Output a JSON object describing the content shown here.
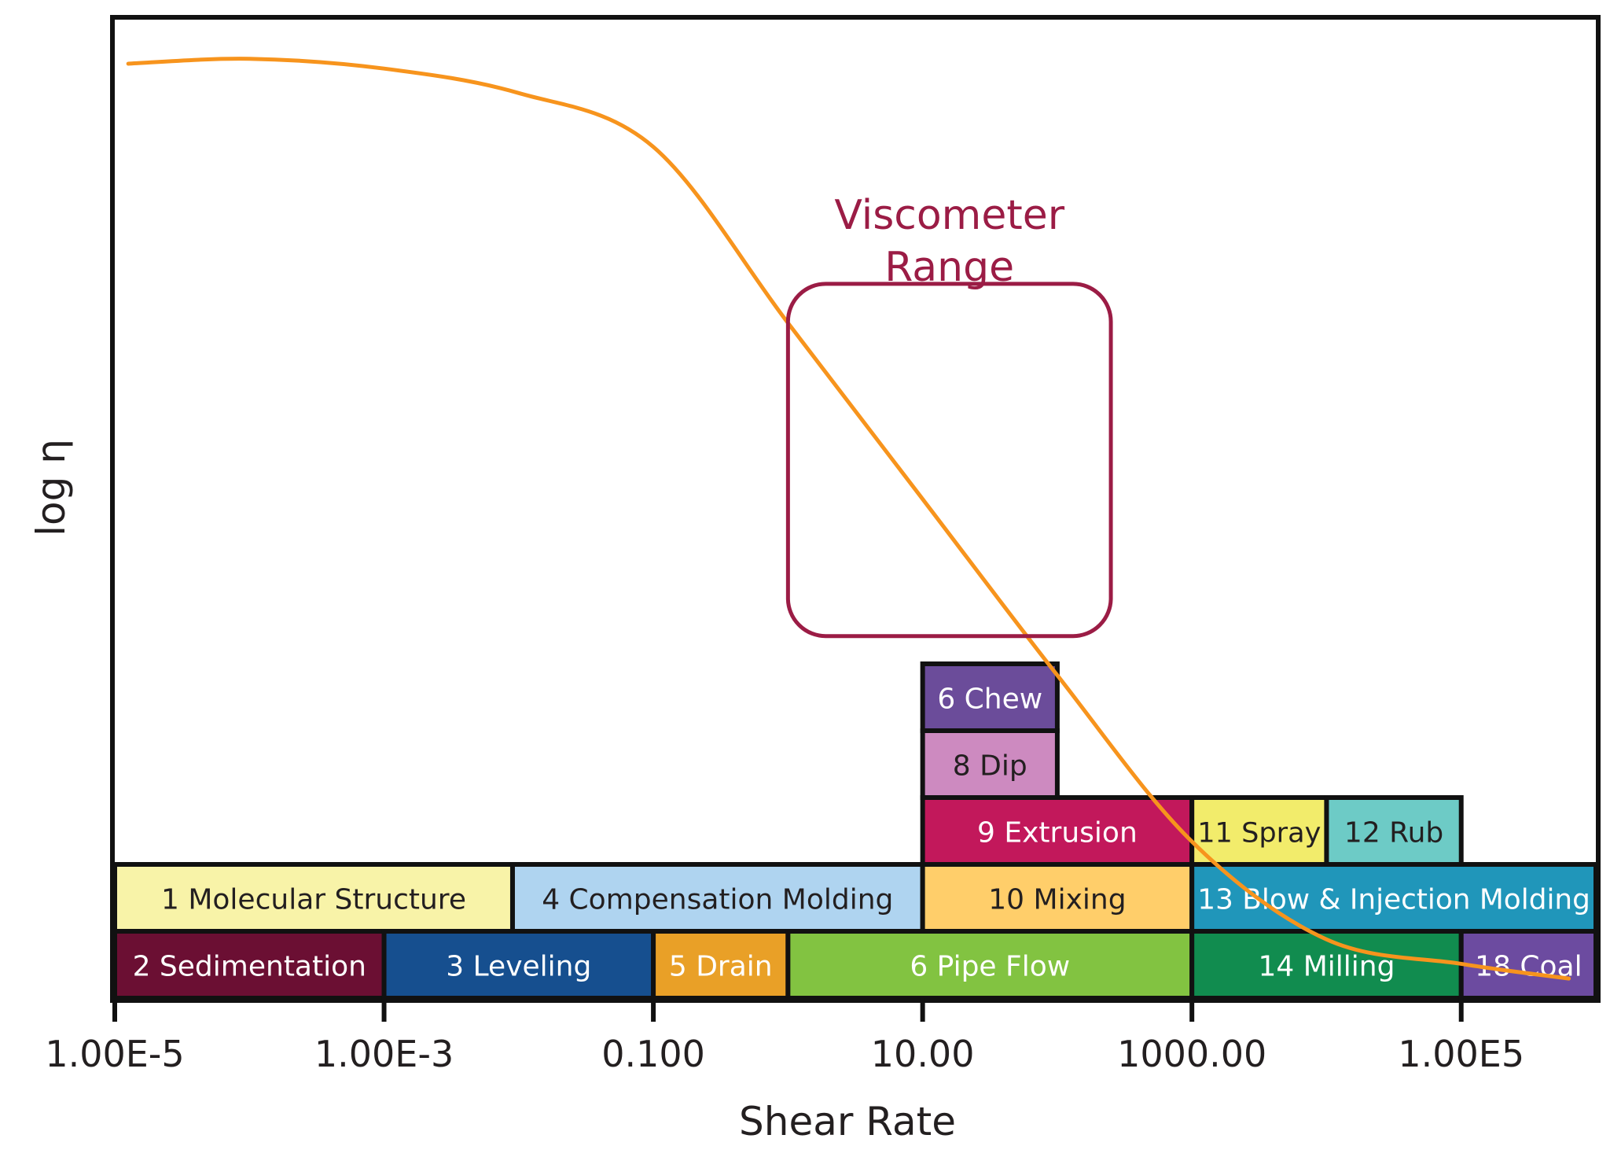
{
  "chart_data": {
    "type": "line",
    "xlabel": "Shear Rate",
    "ylabel": "log η",
    "x_scale": "log",
    "x_ticks": [
      {
        "value": 1e-05,
        "label": "1.00E-5"
      },
      {
        "value": 0.001,
        "label": "1.00E-3"
      },
      {
        "value": 0.1,
        "label": "0.100"
      },
      {
        "value": 10,
        "label": "10.00"
      },
      {
        "value": 1000,
        "label": "1000.00"
      },
      {
        "value": 100000,
        "label": "1.00E5"
      }
    ],
    "xlim": [
      1e-05,
      1000000
    ],
    "curve": {
      "color": "#F7941D",
      "x": [
        1.26e-05,
        0.0001,
        0.001,
        0.01,
        0.1,
        1,
        10,
        100,
        1000,
        10000,
        100000,
        630000
      ],
      "y": [
        0.955,
        0.96,
        0.95,
        0.925,
        0.87,
        0.69,
        0.51,
        0.33,
        0.16,
        0.06,
        0.035,
        0.02
      ]
    },
    "annotation": {
      "lines": [
        "Viscometer",
        "Range"
      ],
      "color": "#9B1C45",
      "x_range": [
        1,
        250
      ],
      "y_range": [
        0.37,
        0.73
      ]
    },
    "applications": [
      {
        "label": "1 Molecular Structure",
        "x_from": 1e-05,
        "x_to": 0.009,
        "row": 1,
        "color": "#F8F3A8",
        "text_color": "#231F20"
      },
      {
        "label": "4 Compensation Molding",
        "x_from": 0.009,
        "x_to": 10,
        "row": 1,
        "color": "#AFD4F0",
        "text_color": "#231F20"
      },
      {
        "label": "10 Mixing",
        "x_from": 10,
        "x_to": 1000,
        "row": 1,
        "color": "#FFCE6A",
        "text_color": "#231F20"
      },
      {
        "label": "13 Blow & Injection Molding",
        "x_from": 1000,
        "x_to": 1000000,
        "row": 1,
        "color": "#2096BA",
        "text_color": "#ffffff"
      },
      {
        "label": "2 Sedimentation",
        "x_from": 1e-05,
        "x_to": 0.001,
        "row": 0,
        "color": "#6B0F33",
        "text_color": "#ffffff"
      },
      {
        "label": "3 Leveling",
        "x_from": 0.001,
        "x_to": 0.1,
        "row": 0,
        "color": "#164F8F",
        "text_color": "#ffffff"
      },
      {
        "label": "5 Drain",
        "x_from": 0.1,
        "x_to": 1,
        "row": 0,
        "color": "#E9A027",
        "text_color": "#ffffff"
      },
      {
        "label": "6 Pipe Flow",
        "x_from": 1,
        "x_to": 1000,
        "row": 0,
        "color": "#82C341",
        "text_color": "#ffffff"
      },
      {
        "label": "14 Milling",
        "x_from": 1000,
        "x_to": 100000,
        "row": 0,
        "color": "#118C4F",
        "text_color": "#ffffff"
      },
      {
        "label": "18 Coal",
        "x_from": 100000,
        "x_to": 1000000,
        "row": 0,
        "color": "#6C4BA0",
        "text_color": "#ffffff"
      },
      {
        "label": "9 Extrusion",
        "x_from": 10,
        "x_to": 1000,
        "row": 2,
        "color": "#C2185B",
        "text_color": "#ffffff"
      },
      {
        "label": "11 Spray",
        "x_from": 1000,
        "x_to": 10000,
        "row": 2,
        "color": "#F2EC6B",
        "text_color": "#231F20"
      },
      {
        "label": "12 Rub",
        "x_from": 10000,
        "x_to": 100000,
        "row": 2,
        "color": "#6DCBC6",
        "text_color": "#231F20"
      },
      {
        "label": "8 Dip",
        "x_from": 10,
        "x_to": 100,
        "row": 3,
        "color": "#CD8AC0",
        "text_color": "#231F20"
      },
      {
        "label": "6 Chew",
        "x_from": 10,
        "x_to": 100,
        "row": 4,
        "color": "#6B4C9A",
        "text_color": "#ffffff"
      }
    ]
  }
}
